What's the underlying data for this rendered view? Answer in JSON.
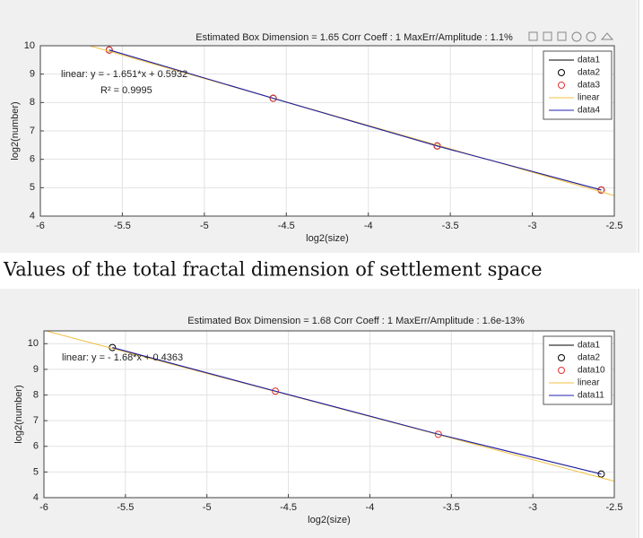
{
  "chart_data": [
    {
      "type": "line",
      "title": "Estimated Box Dimension =  1.65    Corr Coeff : 1    MaxErr/Amplitude : 1.1%",
      "xlabel": "log2(size)",
      "ylabel": "log2(number)",
      "annotations": [
        "linear:  y = - 1.651*x + 0.5932",
        "R² = 0.9995"
      ],
      "xlim": [
        -6,
        -2.5
      ],
      "xticks": [
        -6,
        -5.5,
        -5,
        -4.5,
        -4,
        -3.5,
        -3,
        -2.5
      ],
      "ylim": [
        4,
        10
      ],
      "yticks": [
        4,
        5,
        6,
        7,
        8,
        9,
        10
      ],
      "grid": true,
      "legend": "upper right",
      "series": [
        {
          "name": "data1",
          "style": "line",
          "color": "#000000",
          "x": [
            -5.58,
            -4.58,
            -3.58,
            -2.58
          ],
          "values": [
            9.85,
            8.15,
            6.47,
            4.92
          ]
        },
        {
          "name": "data2",
          "style": "marker",
          "color": "#000000",
          "x": [
            -5.58,
            -4.58,
            -3.58,
            -2.58
          ],
          "values": [
            9.85,
            8.15,
            6.47,
            4.92
          ]
        },
        {
          "name": "data3",
          "style": "marker",
          "color": "#e03030",
          "x": [
            -5.58,
            -4.58,
            -3.58,
            -2.58
          ],
          "values": [
            9.85,
            8.15,
            6.47,
            4.92
          ]
        },
        {
          "name": "linear",
          "style": "line",
          "color": "#f0c040",
          "x": [
            -5.7,
            -2.5
          ],
          "values": [
            10.0,
            4.72
          ]
        },
        {
          "name": "data4",
          "style": "line",
          "color": "#2020b0",
          "x": [
            -5.58,
            -4.58,
            -3.58,
            -2.58
          ],
          "values": [
            9.85,
            8.15,
            6.47,
            4.92
          ]
        }
      ]
    },
    {
      "type": "line",
      "title": "Estimated Box Dimension =  1.68    Corr Coeff : 1    MaxErr/Amplitude : 1.6e-13%",
      "xlabel": "log2(size)",
      "ylabel": "log2(number)",
      "annotations": [
        "linear:  y = - 1.68*x + 0.4363"
      ],
      "xlim": [
        -6,
        -2.5
      ],
      "xticks": [
        -6,
        -5.5,
        -5,
        -4.5,
        -4,
        -3.5,
        -3,
        -2.5
      ],
      "ylim": [
        4,
        10.5
      ],
      "yticks": [
        4,
        5,
        6,
        7,
        8,
        9,
        10
      ],
      "grid": true,
      "legend": "upper right",
      "series": [
        {
          "name": "data1",
          "style": "line",
          "color": "#000000",
          "x": [
            -5.58,
            -4.58,
            -3.58,
            -2.58
          ],
          "values": [
            9.85,
            8.15,
            6.47,
            4.92
          ]
        },
        {
          "name": "data2",
          "style": "marker",
          "color": "#000000",
          "x": [
            -5.58,
            -2.58
          ],
          "values": [
            9.85,
            4.92
          ]
        },
        {
          "name": "data10",
          "style": "marker",
          "color": "#e03030",
          "x": [
            -4.58,
            -3.58
          ],
          "values": [
            8.15,
            6.47
          ]
        },
        {
          "name": "linear",
          "style": "line",
          "color": "#f0c040",
          "x": [
            -6,
            -2.5
          ],
          "values": [
            10.52,
            4.64
          ]
        },
        {
          "name": "data11",
          "style": "line",
          "color": "#2020b0",
          "x": [
            -5.58,
            -4.58,
            -3.58,
            -2.58
          ],
          "values": [
            9.85,
            8.15,
            6.47,
            4.92
          ]
        }
      ]
    }
  ],
  "caption": "Values of the total fractal dimension of settlement space"
}
